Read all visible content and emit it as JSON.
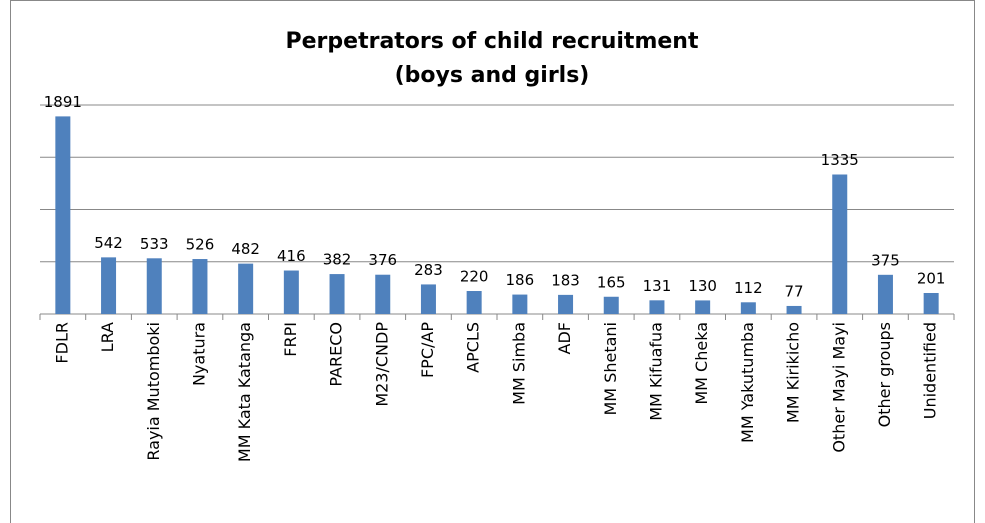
{
  "chart_data": {
    "type": "bar",
    "title": [
      "Perpetrators of child recruitment",
      "(boys and girls)"
    ],
    "categories": [
      "FDLR",
      "LRA",
      "Rayia Mutomboki",
      "Nyatura",
      "MM Kata Katanga",
      "FRPI",
      "PARECO",
      "M23/CNDP",
      "FPC/AP",
      "APCLS",
      "MM Simba",
      "ADF",
      "MM Shetani",
      "MM Kifuafua",
      "MM Cheka",
      "MM Yakutumba",
      "MM Kirikicho",
      "Other Mayi Mayi",
      "Other groups",
      "Unidentified"
    ],
    "values": [
      1891,
      542,
      533,
      526,
      482,
      416,
      382,
      376,
      283,
      220,
      186,
      183,
      165,
      131,
      130,
      112,
      77,
      1335,
      375,
      201
    ],
    "color": "#4f81bd",
    "ylim": [
      0,
      2000
    ],
    "yticks": [
      0,
      500,
      1000,
      1500,
      2000
    ],
    "grid": true
  }
}
